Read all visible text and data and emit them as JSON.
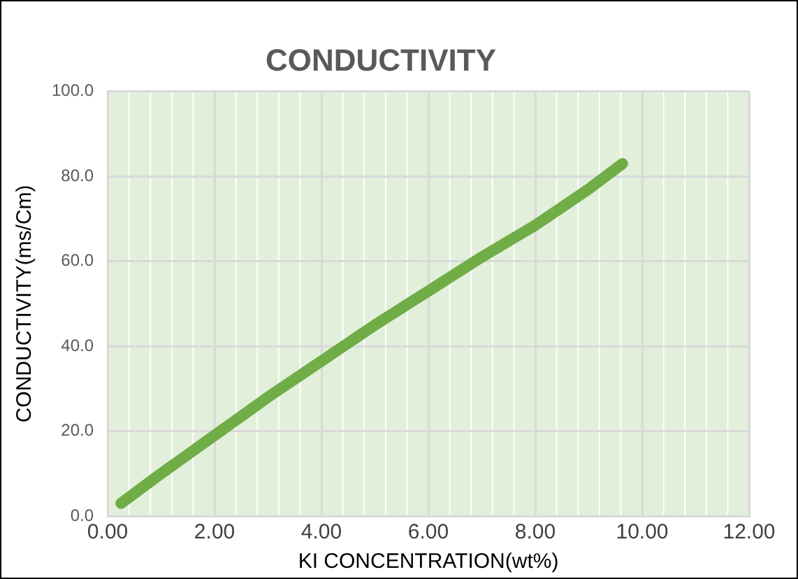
{
  "chart_data": {
    "type": "line",
    "title": "CONDUCTIVITY",
    "xlabel": "KI CONCENTRATION(wt%)",
    "ylabel": "CONDUCTIVITY(ms/Cm)",
    "series": [
      {
        "color": "#70ad47",
        "x": [
          0.25,
          1,
          2,
          3,
          4,
          5,
          6,
          7,
          8,
          9,
          9.63
        ],
        "values": [
          3,
          10,
          19,
          28,
          36.5,
          45,
          53,
          61,
          68.5,
          77,
          83
        ]
      }
    ],
    "xlim": [
      0,
      12
    ],
    "xticks": [
      {
        "value": 0,
        "label": "0.00"
      },
      {
        "value": 2,
        "label": "2.00"
      },
      {
        "value": 4,
        "label": "4.00"
      },
      {
        "value": 6,
        "label": "6.00"
      },
      {
        "value": 8,
        "label": "8.00"
      },
      {
        "value": 10,
        "label": "10.00"
      },
      {
        "value": 12,
        "label": "12.00"
      }
    ],
    "ylim": [
      0,
      100
    ],
    "yticks": [
      {
        "value": 0,
        "label": "0.0"
      },
      {
        "value": 20,
        "label": "20.0"
      },
      {
        "value": 40,
        "label": "40.0"
      },
      {
        "value": 60,
        "label": "60.0"
      },
      {
        "value": 80,
        "label": "80.0"
      },
      {
        "value": 100,
        "label": "100.0"
      }
    ],
    "grid": true,
    "legend": false,
    "marker": "none",
    "line_style": "solid"
  }
}
